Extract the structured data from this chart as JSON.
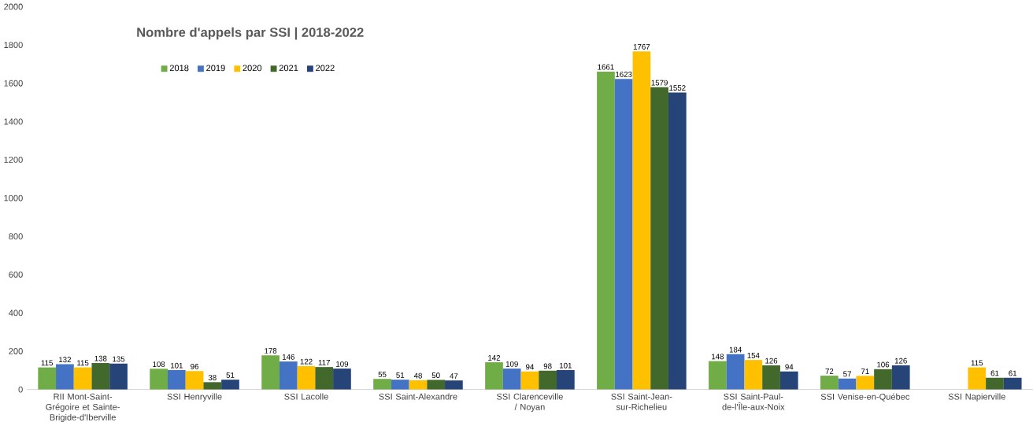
{
  "chart_data": {
    "type": "bar",
    "title": "Nombre d'appels par SSI | 2018-2022",
    "categories": [
      "RII Mont-Saint-Grégoire et Sainte-Brigide-d'Iberville",
      "SSI Henryville",
      "SSI Lacolle",
      "SSI Saint-Alexandre",
      "SSI Clarenceville / Noyan",
      "SSI Saint-Jean-sur-Richelieu",
      "SSI Saint-Paul-de-l'Île-aux-Noix",
      "SSI Venise-en-Québec",
      "SSI Napierville"
    ],
    "series": [
      {
        "name": "2018",
        "color": "#70ad47",
        "values": [
          115,
          108,
          178,
          55,
          142,
          1661,
          148,
          72,
          null
        ]
      },
      {
        "name": "2019",
        "color": "#4472c4",
        "values": [
          132,
          101,
          146,
          51,
          109,
          1623,
          184,
          57,
          null
        ]
      },
      {
        "name": "2020",
        "color": "#ffc000",
        "values": [
          115,
          96,
          122,
          48,
          94,
          1767,
          154,
          71,
          115
        ]
      },
      {
        "name": "2021",
        "color": "#43682b",
        "values": [
          138,
          38,
          117,
          50,
          98,
          1579,
          126,
          106,
          61
        ]
      },
      {
        "name": "2022",
        "color": "#264478",
        "values": [
          135,
          51,
          109,
          47,
          101,
          1552,
          94,
          126,
          61
        ]
      }
    ],
    "ylim": [
      0,
      2000
    ],
    "yticks": [
      0,
      200,
      400,
      600,
      800,
      1000,
      1200,
      1400,
      1600,
      1800,
      2000
    ],
    "data_labels": true,
    "legend": "top left"
  }
}
